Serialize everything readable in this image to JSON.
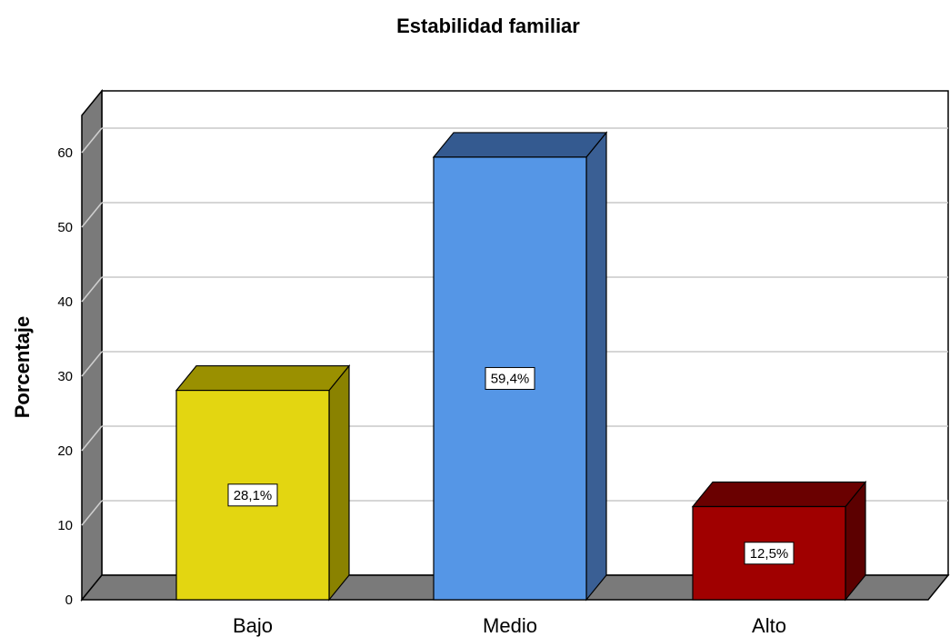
{
  "chart_data": {
    "type": "bar",
    "title": "Estabilidad familiar",
    "xlabel": "",
    "ylabel": "Porcentaje",
    "ylim": [
      0,
      65
    ],
    "yticks": [
      0,
      10,
      20,
      30,
      40,
      50,
      60
    ],
    "grid": true,
    "categories": [
      "Bajo",
      "Medio",
      "Alto"
    ],
    "values": [
      28.1,
      59.4,
      12.5
    ],
    "data_labels": [
      "28,1%",
      "59,4%",
      "12,5%"
    ],
    "colors": [
      {
        "front": "#e3d611",
        "side": "#8a8200",
        "top": "#9a9000"
      },
      {
        "front": "#5596e6",
        "side": "#3a5f94",
        "top": "#345a90"
      },
      {
        "front": "#a00000",
        "side": "#5c0000",
        "top": "#6a0000"
      }
    ]
  }
}
